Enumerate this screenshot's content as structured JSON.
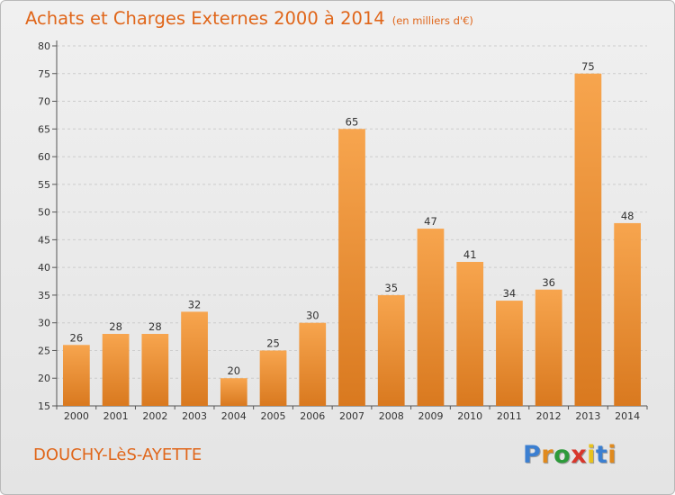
{
  "title": "Achats et Charges Externes 2000 à 2014",
  "subtitle": "(en milliers d'€)",
  "commune": "DOUCHY-LèS-AYETTE",
  "logo": {
    "letters": [
      "P",
      "r",
      "o",
      "x",
      "i",
      "t",
      "i"
    ],
    "colors": [
      "#3b7fd1",
      "#e08a1e",
      "#2d9a3a",
      "#d8362b",
      "#e8c21c",
      "#3b7fd1",
      "#e08a1e"
    ]
  },
  "colors": {
    "accent": "#e0661a",
    "bar_light": "#f7a54e",
    "bar_dark": "#d9791f",
    "grid": "#cccccc"
  },
  "chart_data": {
    "type": "bar",
    "title": "Achats et Charges Externes 2000 à 2014",
    "subtitle": "(en milliers d'€)",
    "categories": [
      "2000",
      "2001",
      "2002",
      "2003",
      "2004",
      "2005",
      "2006",
      "2007",
      "2008",
      "2009",
      "2010",
      "2011",
      "2012",
      "2013",
      "2014"
    ],
    "values": [
      26,
      28,
      28,
      32,
      20,
      25,
      30,
      65,
      35,
      47,
      41,
      34,
      36,
      75,
      48
    ],
    "value_labels": [
      "26",
      "28",
      "28",
      "32",
      "20",
      "25",
      "30",
      "65",
      "35",
      "47",
      "41",
      "34",
      "36",
      "75",
      "48"
    ],
    "yticks": [
      "15",
      "20",
      "25",
      "30",
      "35",
      "40",
      "45",
      "50",
      "55",
      "60",
      "65",
      "70",
      "75",
      "80"
    ],
    "ylim": [
      15,
      80
    ],
    "grid": true,
    "legend": "none"
  }
}
